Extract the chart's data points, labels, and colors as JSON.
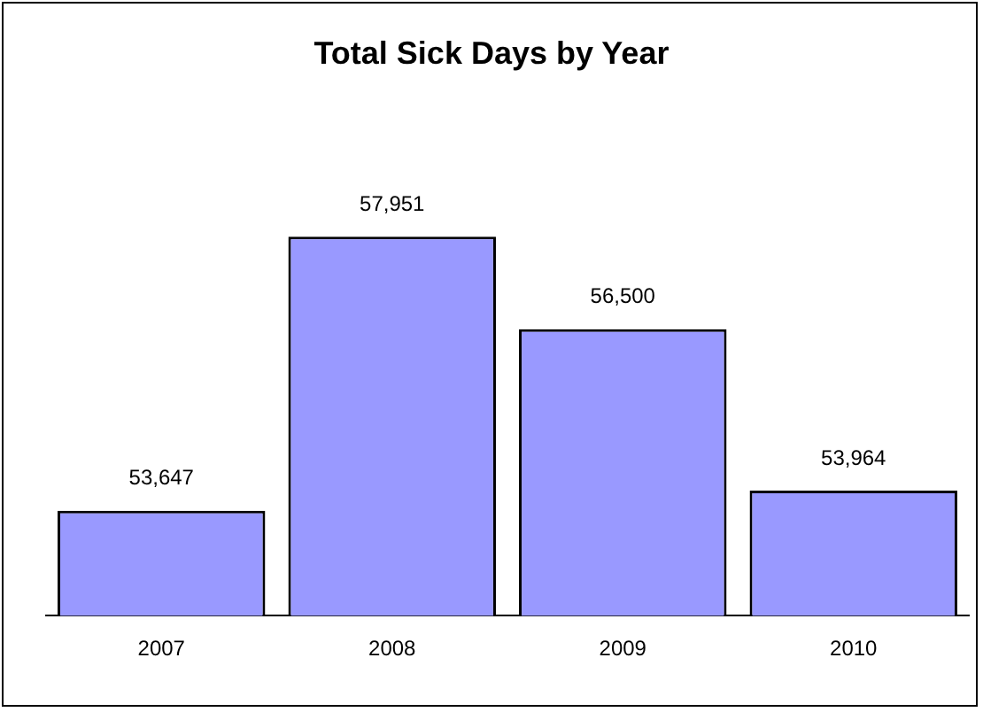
{
  "chart_data": {
    "type": "bar",
    "title": "Total Sick Days by Year",
    "categories": [
      "2007",
      "2008",
      "2009",
      "2010"
    ],
    "values": [
      53647,
      57951,
      56500,
      53964
    ],
    "color": "#9999ff",
    "value_labels": [
      "53,647",
      "57,951",
      "56,500",
      "53,964"
    ],
    "tick_labels": "x",
    "grid": false,
    "legend": false
  }
}
